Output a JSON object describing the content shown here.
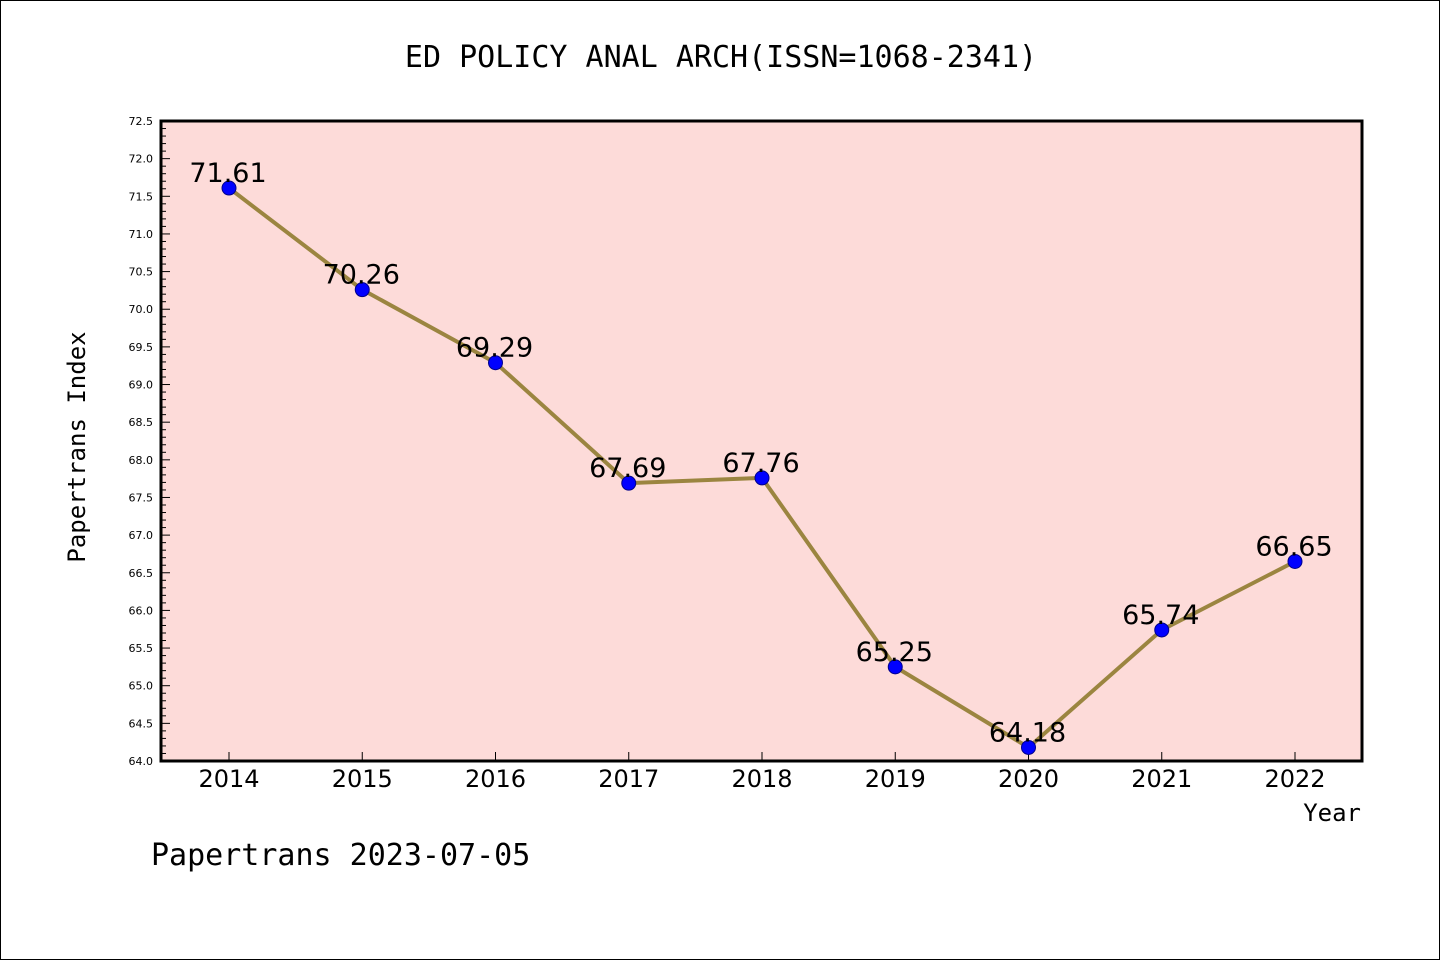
{
  "chart_data": {
    "type": "line",
    "title": "ED POLICY ANAL ARCH(ISSN=1068-2341)",
    "xlabel": "Year",
    "ylabel": "Papertrans Index",
    "categories": [
      "2014",
      "2015",
      "2016",
      "2017",
      "2018",
      "2019",
      "2020",
      "2021",
      "2022"
    ],
    "values": [
      71.61,
      70.26,
      69.29,
      67.69,
      67.76,
      65.25,
      64.18,
      65.74,
      66.65
    ],
    "data_labels": [
      "71.61",
      "70.26",
      "69.29",
      "67.69",
      "67.76",
      "65.25",
      "64.18",
      "65.74",
      "66.65"
    ],
    "ylim": [
      64.0,
      72.5
    ],
    "yticks": [
      "64.0",
      "64.5",
      "65.0",
      "65.5",
      "66.0",
      "66.5",
      "67.0",
      "67.5",
      "68.0",
      "68.5",
      "69.0",
      "69.5",
      "70.0",
      "70.5",
      "71.0",
      "71.5",
      "72.0",
      "72.5"
    ],
    "grid": false,
    "colors": {
      "plot_background": "#fddbd9",
      "line": "#9b8540",
      "marker": "#0000ff"
    }
  },
  "footer": "Papertrans 2023-07-05"
}
